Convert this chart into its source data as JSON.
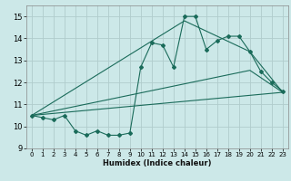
{
  "title": "",
  "xlabel": "Humidex (Indice chaleur)",
  "bg_color": "#cce8e8",
  "grid_color": "#b0cccc",
  "line_color": "#1a6b5a",
  "xlim": [
    -0.5,
    23.5
  ],
  "ylim": [
    9.0,
    15.5
  ],
  "yticks": [
    9,
    10,
    11,
    12,
    13,
    14,
    15
  ],
  "xticks": [
    0,
    1,
    2,
    3,
    4,
    5,
    6,
    7,
    8,
    9,
    10,
    11,
    12,
    13,
    14,
    15,
    16,
    17,
    18,
    19,
    20,
    21,
    22,
    23
  ],
  "line1_x": [
    0,
    1,
    2,
    3,
    4,
    5,
    6,
    7,
    8,
    9,
    10,
    11,
    12,
    13,
    14,
    15,
    16,
    17,
    18,
    19,
    20,
    21,
    22,
    23
  ],
  "line1_y": [
    10.5,
    10.4,
    10.3,
    10.5,
    9.8,
    9.6,
    9.8,
    9.6,
    9.6,
    9.7,
    12.7,
    13.8,
    13.7,
    12.7,
    15.0,
    15.0,
    13.5,
    13.9,
    14.1,
    14.1,
    13.4,
    12.5,
    12.0,
    11.6
  ],
  "line2_x": [
    0,
    14,
    20,
    23
  ],
  "line2_y": [
    10.5,
    14.8,
    13.4,
    11.55
  ],
  "line3_x": [
    0,
    23
  ],
  "line3_y": [
    10.5,
    11.55
  ],
  "line4_x": [
    0,
    20,
    23
  ],
  "line4_y": [
    10.5,
    12.55,
    11.55
  ]
}
